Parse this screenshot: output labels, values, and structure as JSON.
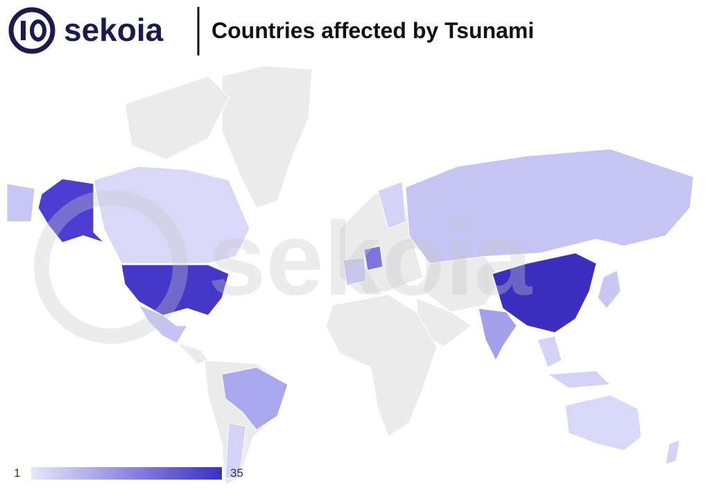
{
  "header": {
    "logo": "sekoia",
    "title": "Countries affected by Tsunami"
  },
  "legend": {
    "min": 1,
    "max": 35,
    "colors": [
      "#e6e6fb",
      "#3a2fc2"
    ]
  }
}
